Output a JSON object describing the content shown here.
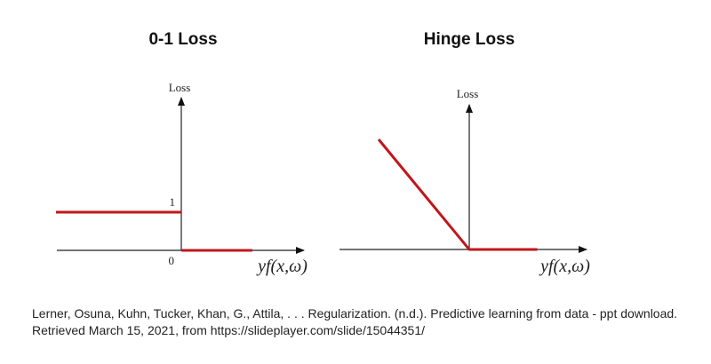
{
  "chart_data": [
    {
      "type": "line",
      "title": "0-1 Loss",
      "xlabel": "yf(x,ω)",
      "ylabel": "Loss",
      "ytick_labels": [
        "1"
      ],
      "origin_label": "0",
      "xlim": [
        -1.5,
        1.5
      ],
      "ylim": [
        0,
        1.7
      ],
      "series": [
        {
          "color": "#c0171b",
          "x": [
            -1.5,
            0
          ],
          "y": [
            1,
            1
          ]
        },
        {
          "color": "#c0171b",
          "x": [
            0,
            0.85
          ],
          "y": [
            0,
            0
          ]
        }
      ]
    },
    {
      "type": "line",
      "title": "Hinge Loss",
      "xlabel": "yf(x,ω)",
      "ylabel": "Loss",
      "xlim": [
        -1.4,
        1.4
      ],
      "ylim": [
        0,
        1.7
      ],
      "series": [
        {
          "color": "#c0171b",
          "x": [
            -1,
            0,
            0.75
          ],
          "y": [
            1,
            0,
            0
          ]
        }
      ]
    }
  ],
  "caption": {
    "line1": "Lerner, Osuna, Kuhn, Tucker, Khan, G., Attila, . . . Regularization. (n.d.). Predictive learning from data - ppt download.",
    "line2": "Retrieved March 15, 2021, from https://slideplayer.com/slide/15044351/"
  }
}
